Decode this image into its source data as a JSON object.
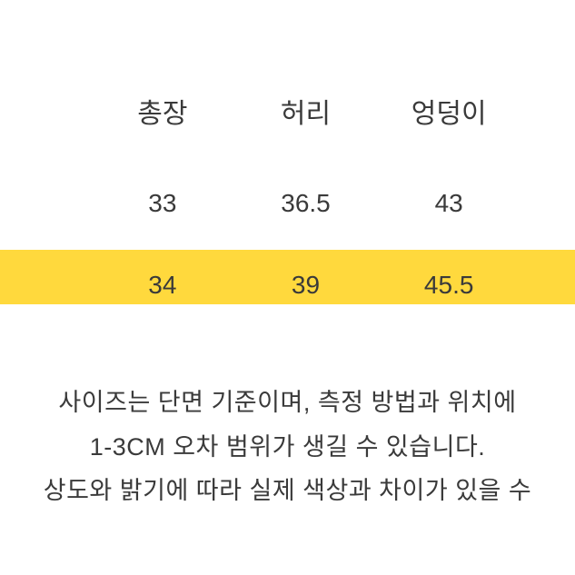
{
  "size_table": {
    "type": "table",
    "columns": [
      "총장",
      "허리",
      "엉덩이"
    ],
    "rows": [
      [
        "33",
        "36.5",
        "43"
      ],
      [
        "34",
        "39",
        "45.5"
      ]
    ],
    "highlighted_row_index": 0,
    "highlight_color": "#ffd93d",
    "text_color": "#3a3a3a",
    "background_color": "#ffffff",
    "header_fontsize": 30,
    "cell_fontsize": 28
  },
  "notes": {
    "line1": "사이즈는 단면 기준이며, 측정 방법과 위치에",
    "line2": "1-3CM 오차 범위가 생길 수 있습니다.",
    "line3": "상도와 밝기에 따라 실제 색상과 차이가 있을 수",
    "fontsize": 27,
    "text_color": "#3a3a3a"
  }
}
